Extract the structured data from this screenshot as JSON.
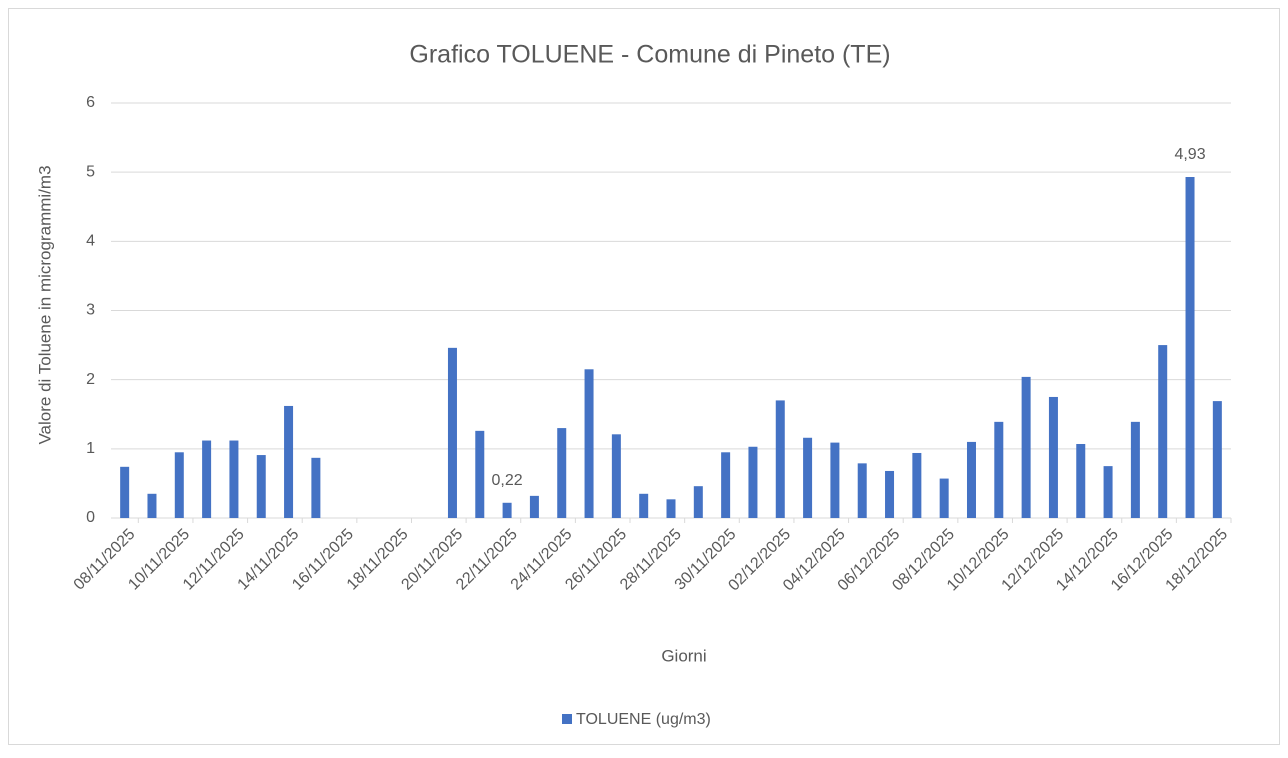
{
  "chart_data": {
    "type": "bar",
    "title": "Grafico TOLUENE - Comune di Pineto (TE)",
    "x_label": "Giorni",
    "y_label": "Valore di Toluene in microgrammi/m3",
    "categories": [
      "08/11/2025",
      null,
      "10/11/2025",
      null,
      "12/11/2025",
      null,
      "14/11/2025",
      null,
      "16/11/2025",
      null,
      "18/11/2025",
      null,
      "20/11/2025",
      null,
      "22/11/2025",
      null,
      "24/11/2025",
      null,
      "26/11/2025",
      null,
      "28/11/2025",
      null,
      "30/11/2025",
      null,
      "02/12/2025",
      null,
      "04/12/2025",
      null,
      "06/12/2025",
      null,
      "08/12/2025",
      null,
      "10/12/2025",
      null,
      "12/12/2025",
      null,
      "14/12/2025",
      null,
      "16/12/2025",
      null,
      "18/12/2025"
    ],
    "series": [
      {
        "name": "TOLUENE (ug/m3)",
        "color": "#4472c4",
        "values": [
          0.74,
          0.35,
          0.95,
          1.12,
          1.12,
          0.91,
          1.62,
          0.87,
          null,
          null,
          null,
          null,
          2.46,
          1.26,
          0.22,
          0.32,
          1.3,
          2.15,
          1.21,
          0.35,
          0.27,
          0.46,
          0.95,
          1.03,
          1.7,
          1.16,
          1.09,
          0.79,
          0.68,
          0.94,
          0.57,
          1.1,
          1.39,
          2.04,
          1.75,
          1.07,
          0.75,
          1.39,
          2.5,
          4.93,
          1.69
        ],
        "value_labels": [
          null,
          null,
          null,
          null,
          null,
          null,
          null,
          null,
          null,
          null,
          null,
          null,
          null,
          null,
          "0,22",
          null,
          null,
          null,
          null,
          null,
          null,
          null,
          null,
          null,
          null,
          null,
          null,
          null,
          null,
          null,
          null,
          null,
          null,
          null,
          null,
          null,
          null,
          null,
          null,
          "4,93",
          null
        ]
      }
    ],
    "ylim": [
      0,
      6
    ],
    "yticks": [
      0,
      1,
      2,
      3,
      4,
      5,
      6
    ],
    "grid": true,
    "legend": "bottom"
  }
}
